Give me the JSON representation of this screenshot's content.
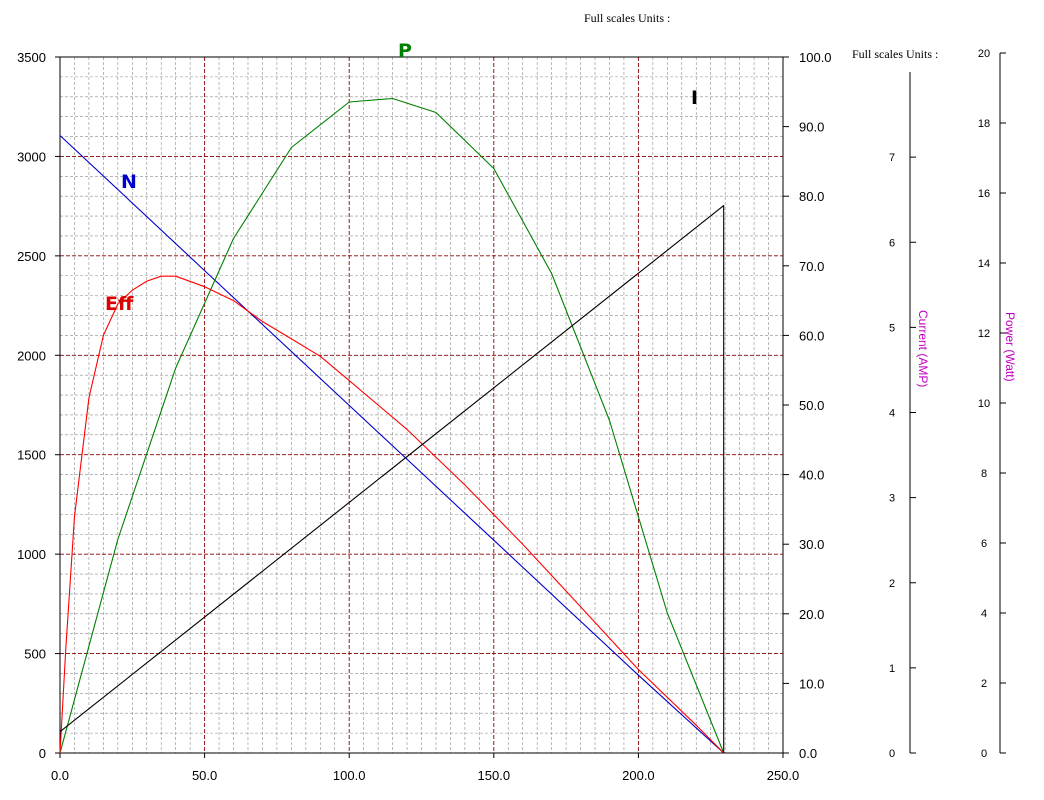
{
  "chart_data": {
    "type": "line",
    "header_top": "Full scales Units :",
    "header_right": "Full scales Units :",
    "x_axis": {
      "ticks": [
        "0.0",
        "50.0",
        "100.0",
        "150.0",
        "200.0",
        "250.0"
      ],
      "range": [
        0,
        250
      ]
    },
    "y_left": {
      "ticks": [
        "0",
        "500",
        "1000",
        "1500",
        "2000",
        "2500",
        "3000",
        "3500"
      ],
      "range": [
        0,
        3500
      ]
    },
    "y_right": {
      "ticks": [
        "0.0",
        "10.0",
        "20.0",
        "30.0",
        "40.0",
        "50.0",
        "60.0",
        "70.0",
        "80.0",
        "90.0",
        "100.0"
      ],
      "range": [
        0,
        100
      ]
    },
    "current_axis": {
      "title": "Current (AMP)",
      "ticks": [
        "0",
        "1",
        "2",
        "3",
        "4",
        "5",
        "6",
        "7"
      ],
      "range": [
        0,
        8
      ]
    },
    "power_axis": {
      "title": "Power (Watt)",
      "ticks": [
        "0",
        "2",
        "4",
        "6",
        "8",
        "10",
        "12",
        "14",
        "16",
        "18",
        "20"
      ],
      "range": [
        0,
        20
      ]
    },
    "grid": true,
    "series": [
      {
        "name": "N",
        "color": "#0000cc",
        "axis": "left",
        "x": [
          0,
          50,
          100,
          150,
          200,
          229.5
        ],
        "y": [
          3105,
          2426,
          1748,
          1070,
          391,
          0
        ]
      },
      {
        "name": "P",
        "color": "#008000",
        "axis": "power",
        "x": [
          0,
          20,
          40,
          60,
          80,
          100,
          115,
          130,
          150,
          170,
          190,
          210,
          229.5
        ],
        "y": [
          0,
          6.1,
          11.0,
          14.7,
          17.3,
          18.6,
          18.7,
          18.3,
          16.7,
          13.7,
          9.5,
          4.0,
          0
        ]
      },
      {
        "name": "Eff",
        "color": "#ff0000",
        "axis": "right",
        "x": [
          0,
          2,
          5,
          10,
          15,
          20,
          25,
          30,
          35,
          40,
          50,
          60,
          70,
          80,
          90,
          100,
          120,
          140,
          160,
          180,
          200,
          220,
          229.5
        ],
        "y": [
          0,
          15,
          34,
          51,
          60,
          64.5,
          66.5,
          67.8,
          68.5,
          68.5,
          67,
          65,
          62,
          59.5,
          57,
          53.5,
          46.5,
          38.5,
          30,
          21,
          12,
          4,
          0
        ]
      },
      {
        "name": "I",
        "color": "#000000",
        "axis": "current",
        "x": [
          0,
          229.5,
          229.5
        ],
        "y": [
          0.25,
          6.43,
          0
        ]
      }
    ]
  }
}
